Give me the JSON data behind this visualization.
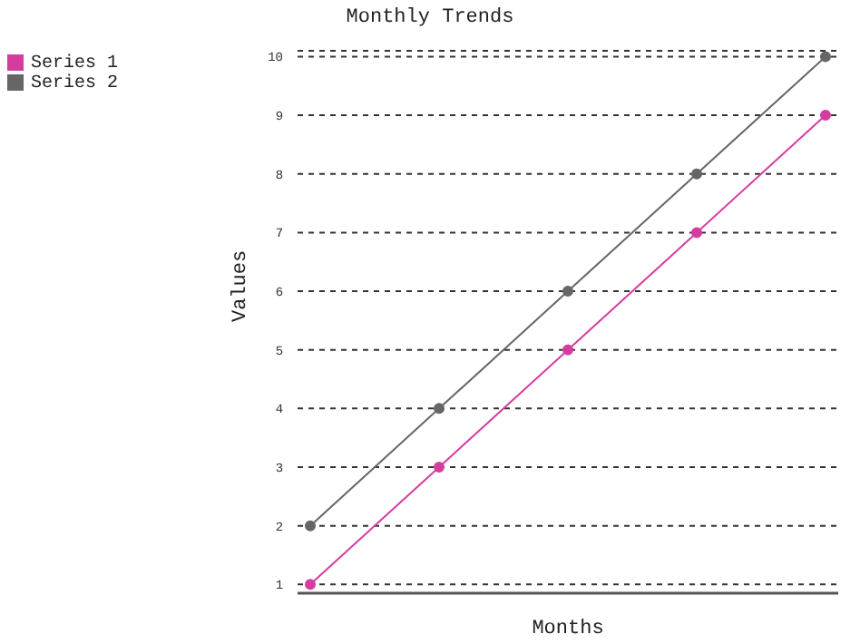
{
  "chart_data": {
    "type": "line",
    "title": "Monthly Trends",
    "xlabel": "Months",
    "ylabel": "Values",
    "categories": [
      null,
      null,
      null,
      null,
      null
    ],
    "series": [
      {
        "name": "Series 1",
        "color": "#d63ca0",
        "values": [
          1,
          3,
          5,
          7,
          9
        ]
      },
      {
        "name": "Series 2",
        "color": "#666666",
        "values": [
          2,
          4,
          6,
          8,
          10
        ]
      }
    ],
    "ylim": [
      0.85,
      10.1
    ],
    "yticks": [
      1,
      2,
      3,
      4,
      5,
      6,
      7,
      8,
      9,
      10
    ],
    "grid": "y",
    "legend": "top left",
    "marker": "circle",
    "line_style": "solid"
  }
}
